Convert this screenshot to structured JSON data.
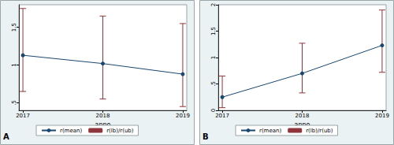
{
  "chart_data": [
    {
      "type": "line",
      "title": "A",
      "x_label": "anno",
      "x": [
        2017,
        2018,
        2019
      ],
      "xlim": [
        2016.95,
        2019.05
      ],
      "xticks": [
        2017,
        2018,
        2019
      ],
      "ylim": [
        0.4,
        1.8
      ],
      "yticks": [
        {
          "value": 0.5,
          "label": ".5"
        },
        1,
        1.5
      ],
      "grid": false,
      "legend": "bottom",
      "series": [
        {
          "name": "r(mean)",
          "color": "#1a476f",
          "marker": "circle",
          "values": [
            1.13,
            1.02,
            0.88
          ]
        },
        {
          "name": "r(lb)/r(ub)",
          "type": "errorbar",
          "color": "#90353b",
          "lower": [
            0.65,
            0.55,
            0.45
          ],
          "upper": [
            1.75,
            1.65,
            1.55
          ]
        }
      ]
    },
    {
      "type": "line",
      "title": "B",
      "x_label": "anno",
      "x": [
        2017,
        2018,
        2019
      ],
      "xlim": [
        2016.95,
        2019.05
      ],
      "xticks": [
        2017,
        2018,
        2019
      ],
      "ylim": [
        0,
        2
      ],
      "yticks": [
        0,
        {
          "value": 0.5,
          "label": ".5"
        },
        1,
        1.5,
        2
      ],
      "grid": false,
      "legend": "bottom",
      "series": [
        {
          "name": "r(mean)",
          "color": "#1a476f",
          "marker": "circle",
          "values": [
            0.25,
            0.7,
            1.23
          ]
        },
        {
          "name": "r(lb)/r(ub)",
          "type": "errorbar",
          "color": "#90353b",
          "lower": [
            0.05,
            0.33,
            0.72
          ],
          "upper": [
            0.65,
            1.27,
            1.9
          ]
        }
      ]
    }
  ]
}
